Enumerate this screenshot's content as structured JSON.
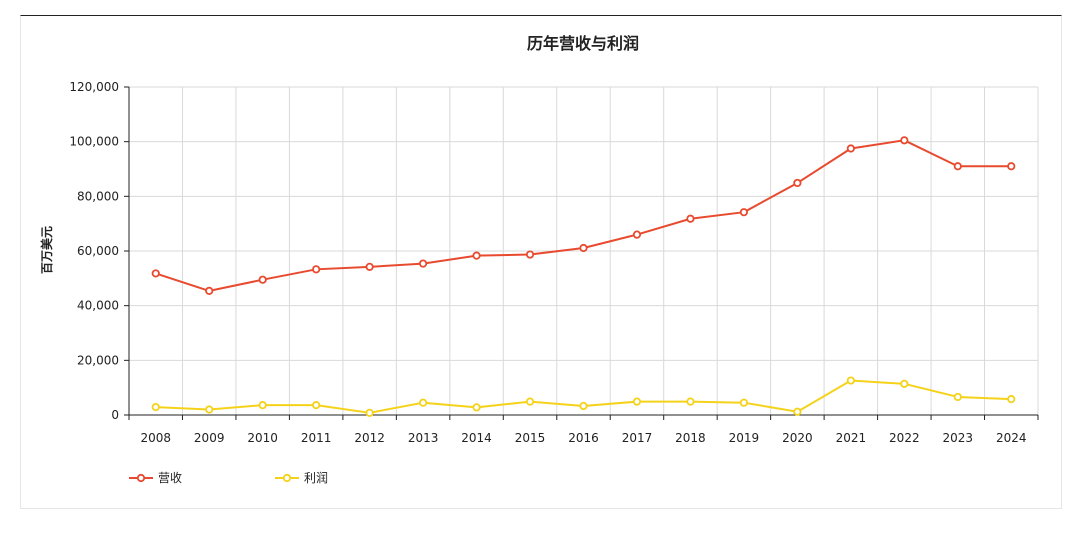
{
  "chart_data": {
    "type": "line",
    "title": "历年营收与利润",
    "xlabel": "",
    "ylabel": "百万美元",
    "x": [
      "2008",
      "2009",
      "2010",
      "2011",
      "2012",
      "2013",
      "2014",
      "2015",
      "2016",
      "2017",
      "2018",
      "2019",
      "2020",
      "2021",
      "2022",
      "2023",
      "2024"
    ],
    "ylim": [
      0,
      120000
    ],
    "yticks": [
      0,
      20000,
      40000,
      60000,
      80000,
      100000,
      120000
    ],
    "ytick_labels": [
      "0",
      "20,000",
      "40,000",
      "60,000",
      "80,000",
      "100,000",
      "120,000"
    ],
    "grid": true,
    "legend_position": "bottom-left",
    "series": [
      {
        "name": "营收",
        "color": "#e84a2f",
        "values": [
          51800,
          45400,
          49500,
          53300,
          54200,
          55400,
          58300,
          58700,
          61100,
          66000,
          71800,
          74200,
          84900,
          97500,
          100500,
          91000,
          91000
        ]
      },
      {
        "name": "利润",
        "color": "#f5d21a",
        "values": [
          2900,
          2000,
          3600,
          3600,
          800,
          4500,
          2800,
          4900,
          3300,
          4900,
          4900,
          4500,
          1200,
          12600,
          11400,
          6600,
          5800
        ]
      }
    ]
  }
}
